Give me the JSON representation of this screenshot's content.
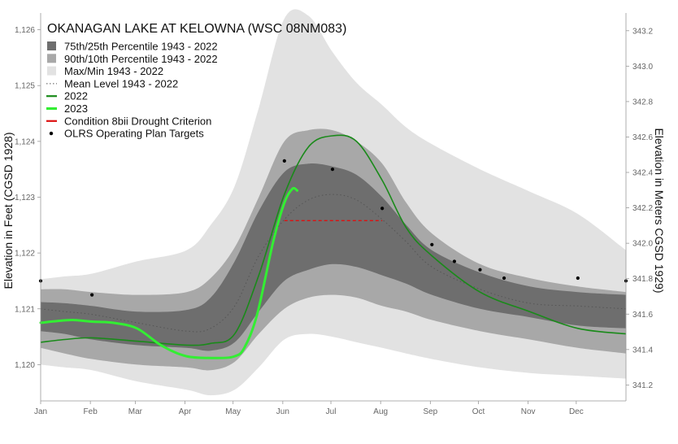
{
  "chart_data": {
    "type": "area",
    "title": "OKANAGAN LAKE AT KELOWNA (WSC 08NM083)",
    "ylabel_left": "Elevation in Feet (CGSD 1928)",
    "ylabel_right": "Elevation in Meters CGSD 1929)",
    "xlabel": "",
    "x_ticks": [
      "Jan",
      "Feb",
      "Mar",
      "Apr",
      "May",
      "Jun",
      "Jul",
      "Aug",
      "Sep",
      "Oct",
      "Nov",
      "Dec"
    ],
    "y_left_ticks": [
      "1,120",
      "1,121",
      "1,122",
      "1,123",
      "1,124",
      "1,125",
      "1,126"
    ],
    "y_right_ticks": [
      "341.2",
      "341.4",
      "341.6",
      "341.8",
      "342.0",
      "342.2",
      "342.4",
      "342.6",
      "342.8",
      "343.0",
      "343.2"
    ],
    "ylim_ft": [
      1119.35,
      1126.3
    ],
    "ylim_m": [
      341.11,
      343.3
    ],
    "xlim_day": [
      0,
      365
    ],
    "grid": false,
    "legend_placement": "top-left",
    "legend": [
      {
        "label": "75th/25th Percentile 1943 - 2022",
        "kind": "box",
        "color": "#6e6e6e"
      },
      {
        "label": "90th/10th Percentile 1943 - 2022",
        "kind": "box",
        "color": "#a8a8a8"
      },
      {
        "label": "Max/Min 1943 - 2022",
        "kind": "box",
        "color": "#e2e2e2"
      },
      {
        "label": "Mean Level 1943 - 2022",
        "kind": "dotted",
        "color": "#555555"
      },
      {
        "label": "2022",
        "kind": "line",
        "color": "#1a8a1a"
      },
      {
        "label": "2023",
        "kind": "thickline",
        "color": "#33ee33"
      },
      {
        "label": "Condition 8bii Drought Criterion",
        "kind": "line",
        "color": "#dd1111"
      },
      {
        "label": "OLRS Operating Plan Targets",
        "kind": "dot",
        "color": "#000000"
      }
    ],
    "x": [
      0,
      15,
      32,
      60,
      91,
      106,
      121,
      136,
      152,
      167,
      182,
      197,
      213,
      228,
      244,
      274,
      305,
      335,
      365
    ],
    "series": [
      {
        "name": "Max/Min 1943 - 2022",
        "kind": "band",
        "color": "#e2e2e2",
        "upper": [
          1121.53,
          1121.58,
          1121.63,
          1121.85,
          1122.05,
          1122.5,
          1123.2,
          1124.6,
          1126.2,
          1126.25,
          1125.6,
          1125.05,
          1124.65,
          1124.25,
          1123.95,
          1123.5,
          1123.1,
          1122.7,
          1122.05
        ],
        "lower": [
          1120.0,
          1119.95,
          1119.9,
          1119.7,
          1119.55,
          1119.45,
          1119.55,
          1119.95,
          1120.45,
          1120.55,
          1120.5,
          1120.4,
          1120.3,
          1120.2,
          1120.1,
          1119.95,
          1119.85,
          1119.8,
          1119.75
        ]
      },
      {
        "name": "90th/10th Percentile 1943 - 2022",
        "kind": "band",
        "color": "#a8a8a8",
        "upper": [
          1121.35,
          1121.35,
          1121.3,
          1121.25,
          1121.3,
          1121.55,
          1122.1,
          1123.0,
          1124.0,
          1124.2,
          1124.2,
          1124.0,
          1123.6,
          1122.9,
          1122.35,
          1121.8,
          1121.55,
          1121.4,
          1121.3
        ],
        "lower": [
          1120.3,
          1120.2,
          1120.1,
          1120.0,
          1119.95,
          1119.9,
          1120.05,
          1120.55,
          1121.0,
          1121.2,
          1121.25,
          1121.2,
          1121.05,
          1120.95,
          1120.8,
          1120.6,
          1120.45,
          1120.3,
          1120.2
        ]
      },
      {
        "name": "75th/25th Percentile 1943 - 2022",
        "kind": "band",
        "color": "#6e6e6e",
        "upper": [
          1121.12,
          1121.1,
          1121.05,
          1120.95,
          1120.98,
          1121.2,
          1121.85,
          1122.75,
          1123.45,
          1123.6,
          1123.55,
          1123.4,
          1123.0,
          1122.5,
          1122.05,
          1121.65,
          1121.4,
          1121.3,
          1121.25
        ],
        "lower": [
          1120.6,
          1120.55,
          1120.45,
          1120.35,
          1120.3,
          1120.25,
          1120.4,
          1120.95,
          1121.5,
          1121.7,
          1121.8,
          1121.75,
          1121.6,
          1121.45,
          1121.25,
          1121.0,
          1120.85,
          1120.7,
          1120.65
        ]
      },
      {
        "name": "Mean Level 1943 - 2022",
        "kind": "dotted",
        "color": "#555555",
        "values": [
          1121.0,
          1120.95,
          1120.9,
          1120.75,
          1120.6,
          1120.65,
          1121.05,
          1121.95,
          1122.6,
          1122.95,
          1123.05,
          1122.95,
          1122.6,
          1122.2,
          1121.75,
          1121.35,
          1121.1,
          1121.05,
          1121.0
        ]
      },
      {
        "name": "2022",
        "kind": "line",
        "color": "#1a8a1a",
        "values": [
          1120.4,
          1120.45,
          1120.48,
          1120.42,
          1120.35,
          1120.38,
          1120.55,
          1121.6,
          1123.05,
          1123.9,
          1124.1,
          1124.0,
          1123.3,
          1122.45,
          1121.95,
          1121.3,
          1120.95,
          1120.65,
          1120.55
        ]
      },
      {
        "name": "2023",
        "kind": "thickline",
        "color": "#33ee33",
        "x": [
          0,
          10,
          20,
          32,
          45,
          60,
          75,
          91,
          110,
          121,
          127,
          135,
          145,
          152,
          157,
          160
        ],
        "values": [
          1120.75,
          1120.78,
          1120.8,
          1120.77,
          1120.75,
          1120.65,
          1120.35,
          1120.15,
          1120.12,
          1120.15,
          1120.3,
          1120.9,
          1122.2,
          1122.9,
          1123.15,
          1123.12
        ]
      },
      {
        "name": "Condition 8bii Drought Criterion",
        "kind": "dashed",
        "color": "#dd1111",
        "x": [
          152,
          213
        ],
        "values": [
          1122.58,
          1122.58
        ]
      }
    ],
    "targets": {
      "name": "OLRS Operating Plan Targets",
      "x": [
        0,
        32,
        152,
        182,
        213,
        244,
        258,
        274,
        289,
        335,
        365
      ],
      "values": [
        1121.5,
        1121.25,
        1123.65,
        1123.5,
        1122.8,
        1122.15,
        1121.85,
        1121.7,
        1121.55,
        1121.55,
        1121.5
      ]
    }
  }
}
